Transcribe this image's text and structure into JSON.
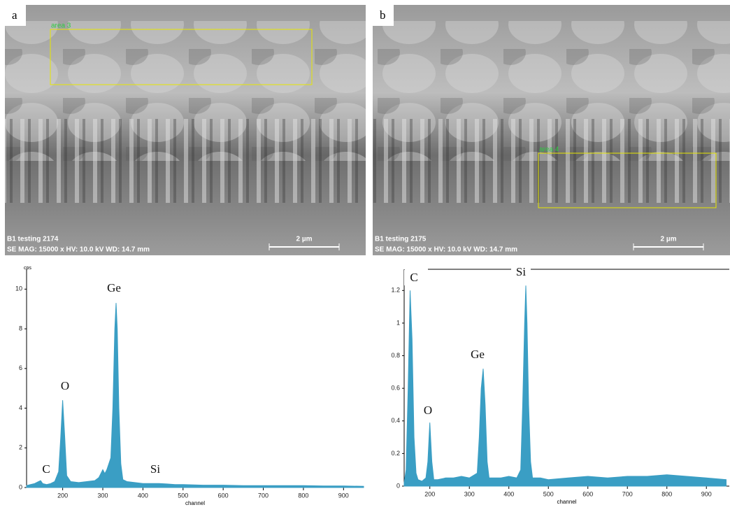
{
  "images": [
    {
      "label": "a",
      "area_label": "area 3",
      "caption_line1": "B1 testing 2174",
      "caption_line2": "SE  MAG: 15000 x  HV: 10.0 kV  WD: 14.7 mm",
      "scale": "2 µm"
    },
    {
      "label": "b",
      "area_label": "area 4",
      "caption_line1": "B1 testing 2175",
      "caption_line2": "SE  MAG: 15000 x  HV: 10.0 kV  WD: 14.7 mm",
      "scale": "2 µm"
    }
  ],
  "chart_data": [
    {
      "type": "area",
      "ylabel": "cps",
      "xlabel": "channel",
      "color": "#3a9ec4",
      "annotations": [
        "C",
        "O",
        "Ge",
        "Si"
      ],
      "x": [
        110,
        120,
        130,
        140,
        145,
        150,
        160,
        170,
        180,
        190,
        195,
        200,
        205,
        210,
        220,
        240,
        260,
        280,
        290,
        300,
        305,
        310,
        320,
        325,
        330,
        333,
        336,
        340,
        345,
        350,
        360,
        380,
        400,
        420,
        440,
        460,
        480,
        500,
        550,
        600,
        650,
        700,
        750,
        800,
        850,
        900,
        950
      ],
      "values": [
        0.1,
        0.15,
        0.2,
        0.3,
        0.35,
        0.2,
        0.15,
        0.2,
        0.3,
        0.8,
        2.5,
        4.4,
        2.6,
        0.6,
        0.3,
        0.25,
        0.3,
        0.35,
        0.5,
        0.9,
        0.7,
        0.9,
        1.5,
        4,
        8,
        9.3,
        8,
        4,
        1.2,
        0.4,
        0.3,
        0.25,
        0.2,
        0.2,
        0.2,
        0.18,
        0.15,
        0.15,
        0.12,
        0.12,
        0.1,
        0.1,
        0.1,
        0.1,
        0.08,
        0.08,
        0.06
      ],
      "xlim": [
        110,
        950
      ],
      "xticks": [
        200,
        300,
        400,
        500,
        600,
        700,
        800,
        900
      ],
      "ylim": [
        0,
        11
      ],
      "yticks": [
        0,
        2,
        4,
        6,
        8,
        10
      ]
    },
    {
      "type": "area",
      "xlabel": "channel",
      "color": "#3a9ec4",
      "annotations": [
        "C",
        "O",
        "Ge",
        "Si"
      ],
      "x": [
        135,
        140,
        145,
        150,
        155,
        160,
        165,
        170,
        180,
        190,
        195,
        200,
        205,
        210,
        220,
        240,
        260,
        280,
        300,
        320,
        325,
        330,
        335,
        340,
        345,
        350,
        360,
        380,
        400,
        420,
        430,
        435,
        440,
        443,
        446,
        450,
        455,
        460,
        480,
        500,
        550,
        600,
        650,
        700,
        750,
        800,
        850,
        900,
        950
      ],
      "values": [
        0.02,
        0.1,
        0.6,
        1.2,
        0.9,
        0.3,
        0.08,
        0.04,
        0.03,
        0.05,
        0.15,
        0.39,
        0.15,
        0.04,
        0.04,
        0.05,
        0.05,
        0.06,
        0.05,
        0.08,
        0.3,
        0.6,
        0.72,
        0.5,
        0.15,
        0.05,
        0.05,
        0.05,
        0.06,
        0.05,
        0.1,
        0.5,
        1.0,
        1.23,
        1.0,
        0.5,
        0.15,
        0.05,
        0.05,
        0.04,
        0.05,
        0.06,
        0.05,
        0.06,
        0.06,
        0.07,
        0.06,
        0.05,
        0.04
      ],
      "xlim": [
        135,
        958
      ],
      "xticks": [
        200,
        300,
        400,
        500,
        600,
        700,
        800,
        900
      ],
      "ylim": [
        0,
        1.33
      ],
      "yticks": [
        0,
        0.2,
        0.4,
        0.6,
        0.8,
        1.0,
        1.2
      ]
    }
  ]
}
